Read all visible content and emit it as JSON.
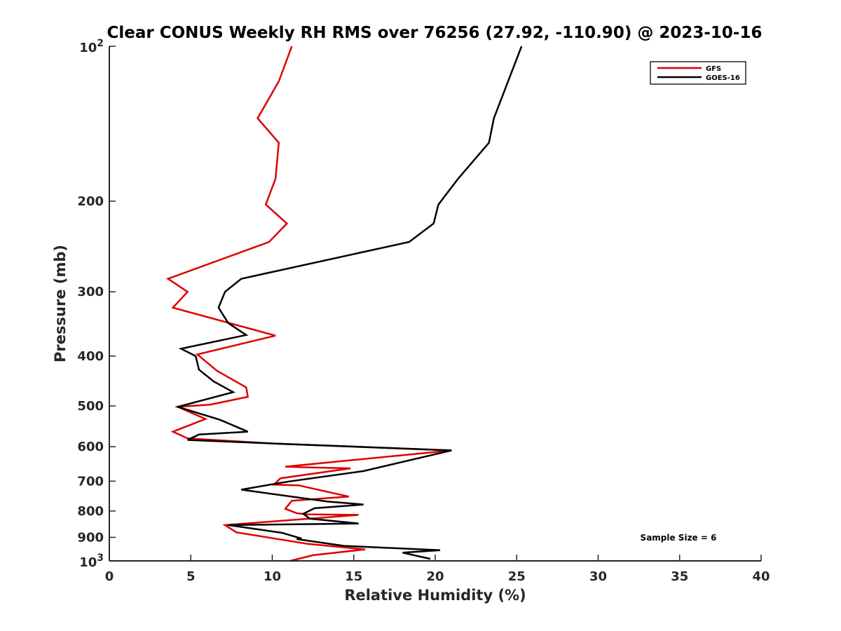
{
  "chart_data": {
    "type": "line",
    "title": "Clear CONUS Weekly RH RMS over 76256 (27.92, -110.90) @ 2023-10-16",
    "xlabel": "Relative Humidity (%)",
    "ylabel": "Pressure (mb)",
    "xlim": [
      0,
      40
    ],
    "ylim": [
      100,
      1000
    ],
    "yscale": "log",
    "y_reversed": true,
    "x_ticks": [
      0,
      5,
      10,
      15,
      20,
      25,
      30,
      35,
      40
    ],
    "x_tick_labels": [
      "0",
      "5",
      "10",
      "15",
      "20",
      "25",
      "30",
      "35",
      "40"
    ],
    "y_ticks": [
      200,
      300,
      400,
      500,
      600,
      700,
      800,
      900
    ],
    "y_tick_labels": [
      "200",
      "300",
      "400",
      "500",
      "600",
      "700",
      "800",
      "900"
    ],
    "y_end_labels": {
      "top": {
        "base": "10",
        "exp": "2"
      },
      "bottom": {
        "base": "10",
        "exp": "3"
      }
    },
    "grid": false,
    "legend_position": "top-right",
    "annotation": "Sample Size = 6",
    "series": [
      {
        "name": "GFS",
        "color": "#dd0000",
        "x": [
          11.2,
          10.4,
          9.1,
          10.4,
          10.2,
          9.6,
          10.9,
          9.8,
          3.6,
          4.8,
          3.9,
          10.2,
          5.4,
          6.6,
          8.4,
          8.5,
          6.2,
          4.2,
          5.9,
          3.9,
          4.8,
          10.3,
          21.0,
          10.8,
          12.2,
          14.8,
          10.5,
          10.1,
          11.6,
          14.7,
          11.2,
          10.8,
          11.5,
          12.2,
          15.3,
          7.1,
          7.8,
          12.2,
          15.7,
          12.5,
          11.1
        ],
        "y": [
          100,
          117,
          138,
          154,
          181,
          203,
          221,
          240,
          283,
          300,
          322,
          365,
          397,
          427,
          460,
          480,
          497,
          502,
          530,
          561,
          578,
          592,
          610,
          656,
          658,
          661,
          691,
          711,
          713,
          750,
          764,
          792,
          808,
          812,
          814,
          852,
          880,
          927,
          950,
          975,
          1000
        ]
      },
      {
        "name": "GOES-16",
        "color": "#000000",
        "x": [
          25.3,
          23.6,
          23.3,
          21.4,
          20.2,
          19.9,
          18.4,
          8.1,
          7.1,
          6.7,
          7.3,
          8.4,
          4.4,
          5.3,
          5.5,
          6.4,
          7.6,
          4.2,
          6.8,
          8.5,
          5.5,
          4.8,
          10.4,
          21.0,
          15.6,
          11.0,
          10.3,
          8.1,
          13.4,
          15.6,
          12.6,
          11.9,
          12.3,
          15.3,
          7.3,
          10.6,
          11.8,
          11.5,
          14.4,
          20.3,
          18.0,
          19.7
        ],
        "y": [
          100,
          138,
          154,
          181,
          203,
          221,
          240,
          283,
          300,
          322,
          345,
          364,
          387,
          400,
          425,
          448,
          470,
          502,
          532,
          561,
          568,
          582,
          592,
          610,
          669,
          701,
          707,
          727,
          767,
          777,
          790,
          810,
          828,
          846,
          852,
          882,
          905,
          907,
          935,
          953,
          964,
          991
        ]
      }
    ]
  }
}
